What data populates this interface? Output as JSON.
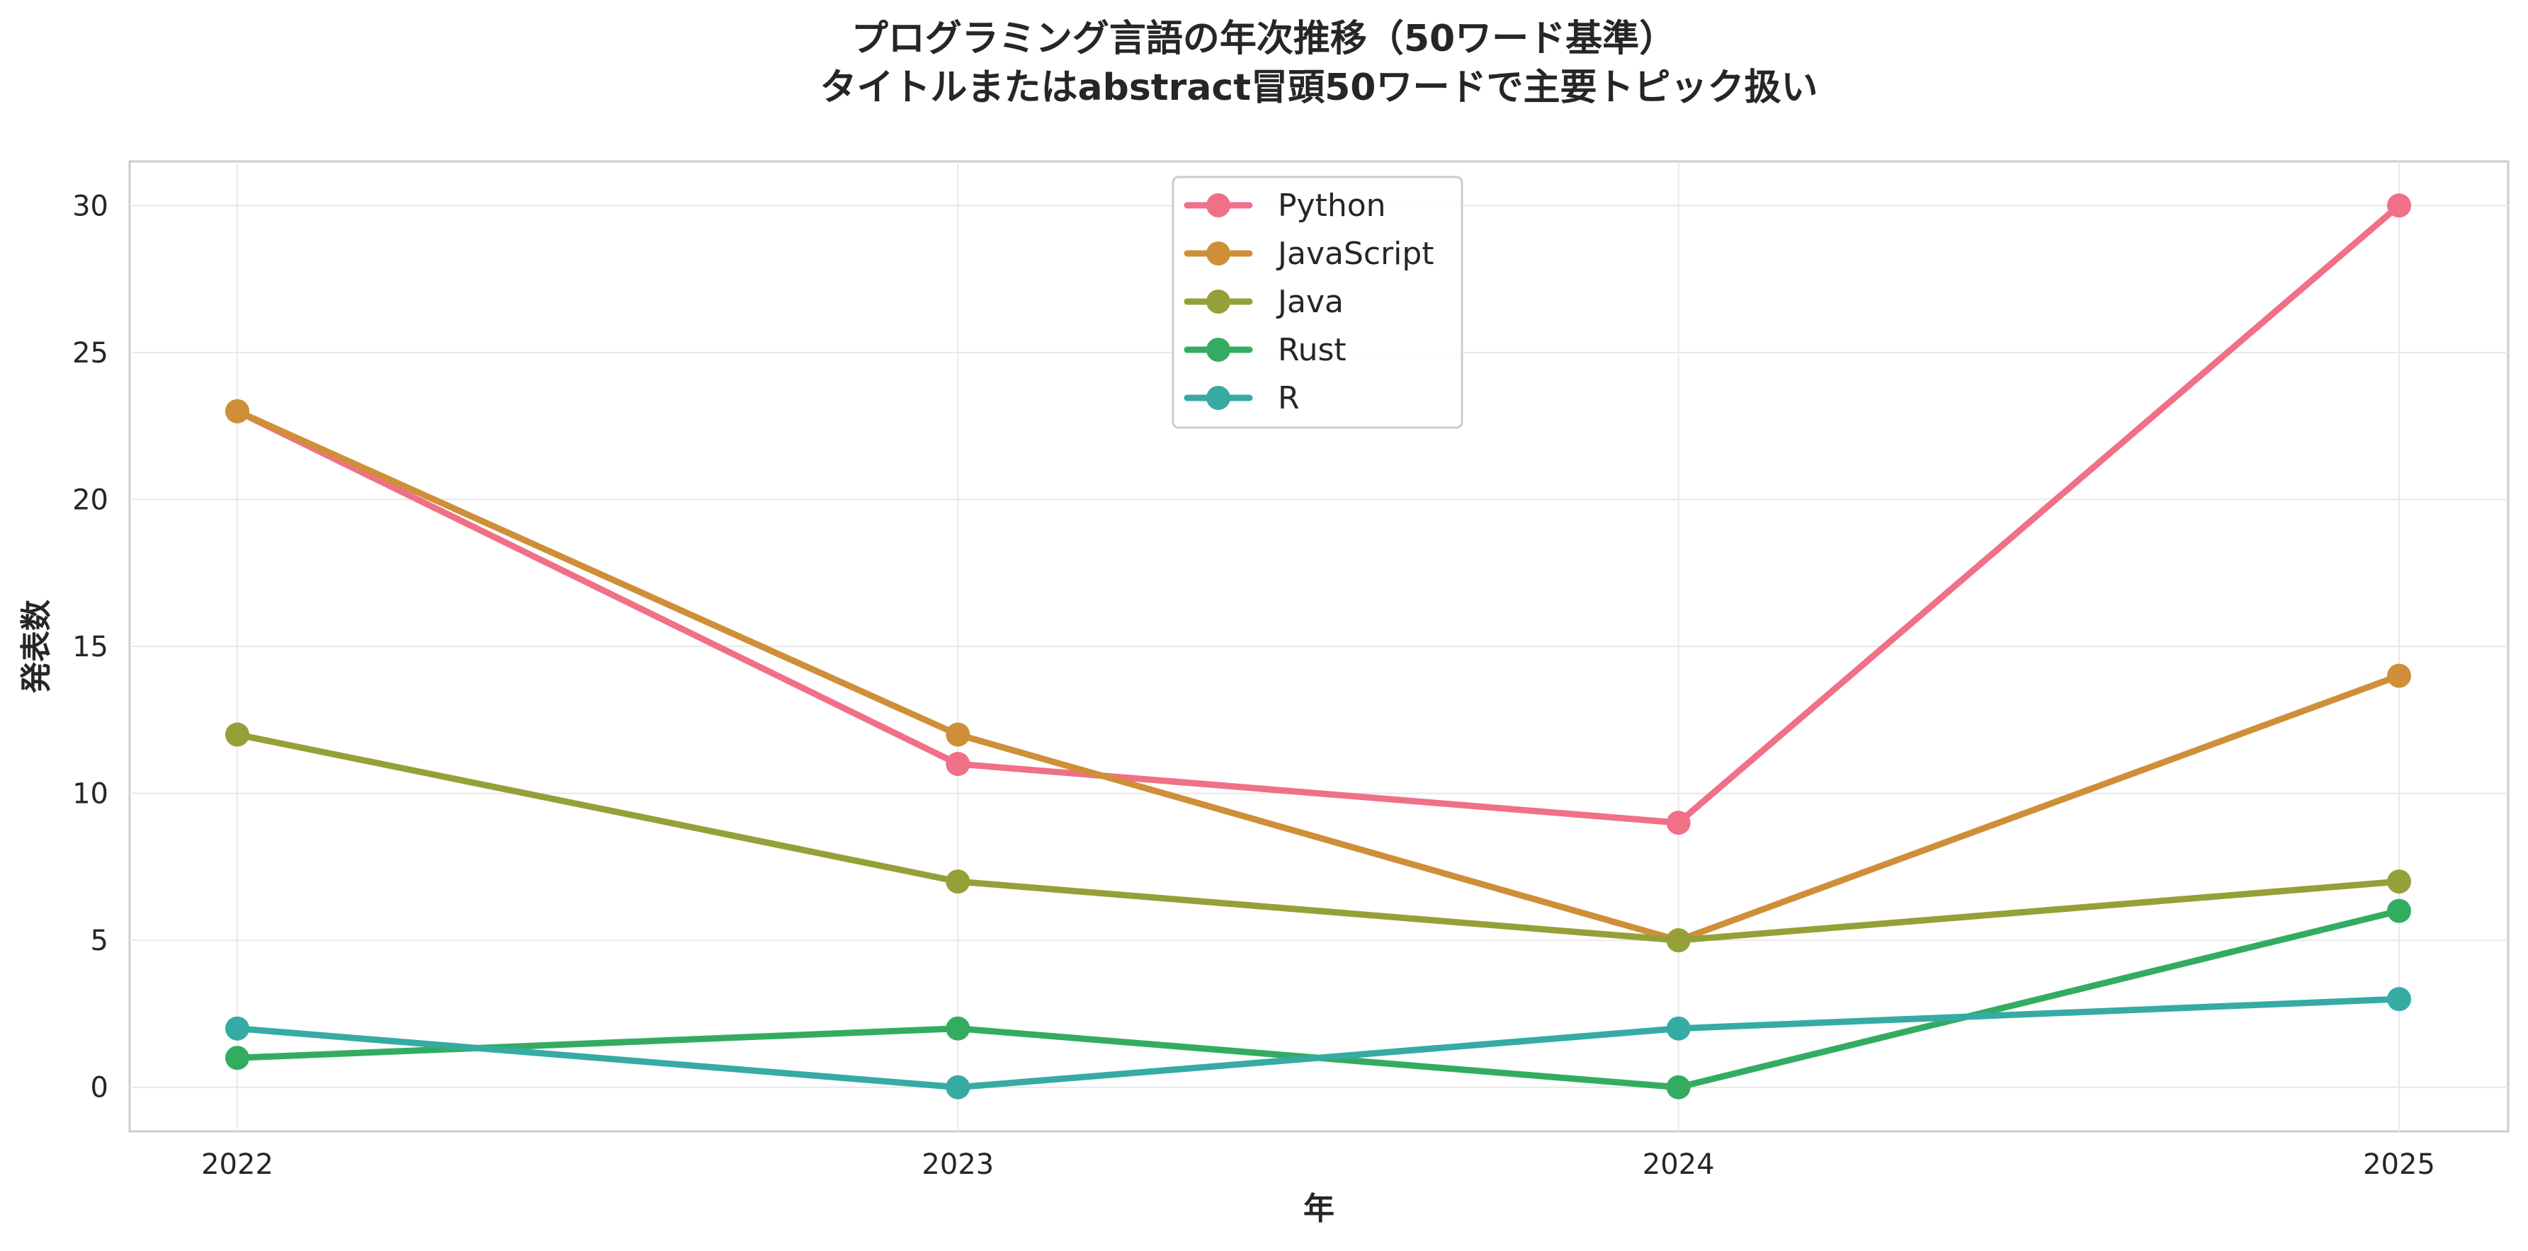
{
  "chart_data": {
    "type": "line",
    "title_lines": [
      "プログラミング言語の年次推移（50ワード基準）",
      "タイトルまたはabstract冒頭50ワードで主要トピック扱い"
    ],
    "xlabel": "年",
    "ylabel": "発表数",
    "x": [
      "2022",
      "2023",
      "2024",
      "2025"
    ],
    "ylim": [
      -1.5,
      31.5
    ],
    "yticks": [
      0,
      5,
      10,
      15,
      20,
      25,
      30
    ],
    "grid": true,
    "legend_position": "top-center",
    "series": [
      {
        "name": "Python",
        "color": "#f07088",
        "values": [
          23,
          11,
          9,
          30
        ]
      },
      {
        "name": "JavaScript",
        "color": "#cf8f38",
        "values": [
          23,
          12,
          5,
          14
        ]
      },
      {
        "name": "Java",
        "color": "#96a038",
        "values": [
          12,
          7,
          5,
          7
        ]
      },
      {
        "name": "Rust",
        "color": "#33ac62",
        "values": [
          1,
          2,
          0,
          6
        ]
      },
      {
        "name": "R",
        "color": "#36aba3",
        "values": [
          2,
          0,
          2,
          3
        ]
      }
    ]
  }
}
